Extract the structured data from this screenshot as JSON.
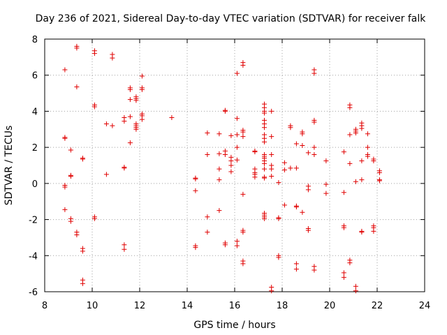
{
  "chart_data": {
    "type": "scatter",
    "title": "Day 236 of 2021, Sidereal Day-to-day VTEC variation (SDTVAR) for receiver falk",
    "xlabel": "GPS time / hours",
    "ylabel": "SDTVAR / TECUs",
    "xlim": [
      8,
      24
    ],
    "ylim": [
      -6,
      8
    ],
    "xticks": [
      8,
      10,
      12,
      14,
      16,
      18,
      20,
      22,
      24
    ],
    "yticks": [
      -6,
      -4,
      -2,
      0,
      2,
      4,
      6,
      8
    ],
    "xtick_labels": [
      "8",
      "10",
      "12",
      "14",
      "16",
      "18",
      "20",
      "22",
      "24"
    ],
    "ytick_labels": [
      "-6",
      "-4",
      "-2",
      "0",
      "2",
      "4",
      "6",
      "8"
    ],
    "grid": true,
    "marker": "plus",
    "color": "#e00000",
    "series": [
      {
        "name": "SDTVAR",
        "points": [
          [
            8.85,
            6.3
          ],
          [
            8.85,
            2.55
          ],
          [
            8.85,
            2.5
          ],
          [
            8.85,
            -0.1
          ],
          [
            8.85,
            -0.2
          ],
          [
            8.85,
            -1.45
          ],
          [
            9.1,
            1.85
          ],
          [
            9.1,
            0.45
          ],
          [
            9.1,
            0.4
          ],
          [
            9.1,
            -1.95
          ],
          [
            9.1,
            -2.1
          ],
          [
            9.35,
            7.6
          ],
          [
            9.35,
            7.5
          ],
          [
            9.35,
            5.35
          ],
          [
            9.35,
            -2.7
          ],
          [
            9.35,
            -2.85
          ],
          [
            9.6,
            1.4
          ],
          [
            9.6,
            1.35
          ],
          [
            9.6,
            -3.6
          ],
          [
            9.6,
            -3.75
          ],
          [
            9.6,
            -5.35
          ],
          [
            9.6,
            -5.55
          ],
          [
            10.1,
            7.35
          ],
          [
            10.1,
            7.2
          ],
          [
            10.1,
            4.35
          ],
          [
            10.1,
            4.25
          ],
          [
            10.1,
            -1.85
          ],
          [
            10.1,
            -1.95
          ],
          [
            10.6,
            3.3
          ],
          [
            10.6,
            0.5
          ],
          [
            10.85,
            7.15
          ],
          [
            10.85,
            6.95
          ],
          [
            10.85,
            3.2
          ],
          [
            11.35,
            3.65
          ],
          [
            11.35,
            3.45
          ],
          [
            11.35,
            0.9
          ],
          [
            11.35,
            0.85
          ],
          [
            11.35,
            -3.4
          ],
          [
            11.35,
            -3.65
          ],
          [
            11.6,
            5.3
          ],
          [
            11.6,
            5.2
          ],
          [
            11.6,
            4.65
          ],
          [
            11.6,
            3.7
          ],
          [
            11.6,
            2.25
          ],
          [
            11.85,
            4.8
          ],
          [
            11.85,
            4.7
          ],
          [
            11.85,
            4.6
          ],
          [
            11.85,
            3.3
          ],
          [
            11.85,
            3.2
          ],
          [
            11.85,
            3.1
          ],
          [
            11.85,
            3.0
          ],
          [
            12.1,
            5.95
          ],
          [
            12.1,
            5.3
          ],
          [
            12.1,
            5.2
          ],
          [
            12.1,
            3.85
          ],
          [
            12.1,
            3.75
          ],
          [
            12.1,
            3.55
          ],
          [
            13.35,
            3.65
          ],
          [
            14.35,
            0.3
          ],
          [
            14.35,
            0.25
          ],
          [
            14.35,
            -0.4
          ],
          [
            14.35,
            -3.45
          ],
          [
            14.35,
            -3.55
          ],
          [
            14.85,
            2.8
          ],
          [
            14.85,
            1.6
          ],
          [
            14.85,
            -1.85
          ],
          [
            14.85,
            -2.7
          ],
          [
            15.35,
            2.75
          ],
          [
            15.35,
            1.65
          ],
          [
            15.35,
            0.8
          ],
          [
            15.35,
            0.2
          ],
          [
            15.35,
            -1.5
          ],
          [
            15.6,
            4.05
          ],
          [
            15.6,
            4.0
          ],
          [
            15.6,
            1.8
          ],
          [
            15.6,
            1.6
          ],
          [
            15.6,
            -3.3
          ],
          [
            15.6,
            -3.4
          ],
          [
            15.85,
            2.65
          ],
          [
            15.85,
            1.45
          ],
          [
            15.85,
            1.25
          ],
          [
            15.85,
            1.0
          ],
          [
            15.85,
            0.65
          ],
          [
            16.1,
            6.1
          ],
          [
            16.1,
            3.6
          ],
          [
            16.1,
            2.7
          ],
          [
            16.1,
            2.0
          ],
          [
            16.1,
            1.3
          ],
          [
            16.1,
            -3.2
          ],
          [
            16.1,
            -3.45
          ],
          [
            16.35,
            6.7
          ],
          [
            16.35,
            6.55
          ],
          [
            16.35,
            2.95
          ],
          [
            16.35,
            2.85
          ],
          [
            16.35,
            2.6
          ],
          [
            16.35,
            -0.6
          ],
          [
            16.35,
            -2.6
          ],
          [
            16.35,
            -2.7
          ],
          [
            16.35,
            -4.3
          ],
          [
            16.35,
            -4.45
          ],
          [
            16.85,
            1.8
          ],
          [
            16.85,
            1.75
          ],
          [
            16.85,
            0.8
          ],
          [
            16.85,
            0.6
          ],
          [
            16.85,
            0.5
          ],
          [
            16.85,
            0.35
          ],
          [
            17.25,
            4.4
          ],
          [
            17.25,
            4.2
          ],
          [
            17.25,
            4.0
          ],
          [
            17.25,
            3.9
          ],
          [
            17.25,
            3.5
          ],
          [
            17.25,
            3.3
          ],
          [
            17.25,
            3.1
          ],
          [
            17.25,
            2.7
          ],
          [
            17.25,
            2.5
          ],
          [
            17.25,
            2.3
          ],
          [
            17.25,
            1.6
          ],
          [
            17.25,
            1.5
          ],
          [
            17.25,
            1.4
          ],
          [
            17.25,
            1.25
          ],
          [
            17.25,
            1.1
          ],
          [
            17.25,
            0.8
          ],
          [
            17.25,
            0.35
          ],
          [
            17.25,
            0.3
          ],
          [
            17.25,
            -1.65
          ],
          [
            17.25,
            -1.75
          ],
          [
            17.25,
            -1.85
          ],
          [
            17.25,
            -1.95
          ],
          [
            17.55,
            4.0
          ],
          [
            17.55,
            2.6
          ],
          [
            17.55,
            1.6
          ],
          [
            17.55,
            1.0
          ],
          [
            17.55,
            0.8
          ],
          [
            17.55,
            0.4
          ],
          [
            17.55,
            -5.75
          ],
          [
            17.55,
            -5.95
          ],
          [
            17.85,
            0.05
          ],
          [
            17.85,
            -1.9
          ],
          [
            17.85,
            -1.95
          ],
          [
            17.85,
            -4.0
          ],
          [
            17.85,
            -4.1
          ],
          [
            18.1,
            1.15
          ],
          [
            18.1,
            0.75
          ],
          [
            18.1,
            -1.2
          ],
          [
            18.35,
            3.2
          ],
          [
            18.35,
            3.1
          ],
          [
            18.35,
            0.85
          ],
          [
            18.6,
            2.2
          ],
          [
            18.6,
            0.85
          ],
          [
            18.6,
            -1.25
          ],
          [
            18.6,
            -1.3
          ],
          [
            18.6,
            -4.45
          ],
          [
            18.6,
            -4.75
          ],
          [
            18.85,
            2.85
          ],
          [
            18.85,
            2.75
          ],
          [
            18.85,
            2.1
          ],
          [
            18.85,
            -1.6
          ],
          [
            19.1,
            1.7
          ],
          [
            19.1,
            -0.15
          ],
          [
            19.1,
            -0.35
          ],
          [
            19.1,
            -2.5
          ],
          [
            19.1,
            -2.6
          ],
          [
            19.35,
            6.3
          ],
          [
            19.35,
            6.1
          ],
          [
            19.35,
            3.5
          ],
          [
            19.35,
            3.4
          ],
          [
            19.35,
            2.0
          ],
          [
            19.35,
            1.6
          ],
          [
            19.35,
            -4.6
          ],
          [
            19.35,
            -4.8
          ],
          [
            19.85,
            1.25
          ],
          [
            19.85,
            -0.05
          ],
          [
            19.85,
            -0.55
          ],
          [
            20.6,
            1.75
          ],
          [
            20.6,
            -0.5
          ],
          [
            20.6,
            -2.35
          ],
          [
            20.6,
            -2.45
          ],
          [
            20.6,
            -4.95
          ],
          [
            20.6,
            -5.2
          ],
          [
            20.85,
            4.35
          ],
          [
            20.85,
            4.2
          ],
          [
            20.85,
            2.7
          ],
          [
            20.85,
            1.1
          ],
          [
            20.85,
            -4.25
          ],
          [
            20.85,
            -4.4
          ],
          [
            21.1,
            3.0
          ],
          [
            21.1,
            2.9
          ],
          [
            21.1,
            2.8
          ],
          [
            21.1,
            0.1
          ],
          [
            21.1,
            -5.7
          ],
          [
            21.1,
            -5.95
          ],
          [
            21.35,
            3.35
          ],
          [
            21.35,
            3.2
          ],
          [
            21.35,
            3.05
          ],
          [
            21.35,
            1.25
          ],
          [
            21.35,
            0.2
          ],
          [
            21.35,
            -2.65
          ],
          [
            21.35,
            -2.7
          ],
          [
            21.6,
            2.75
          ],
          [
            21.6,
            2.0
          ],
          [
            21.6,
            1.6
          ],
          [
            21.6,
            1.5
          ],
          [
            21.85,
            1.35
          ],
          [
            21.85,
            1.25
          ],
          [
            21.85,
            -2.35
          ],
          [
            21.85,
            -2.45
          ],
          [
            21.85,
            -2.65
          ],
          [
            22.1,
            0.7
          ],
          [
            22.1,
            0.6
          ],
          [
            22.1,
            0.2
          ],
          [
            22.1,
            0.15
          ]
        ]
      }
    ]
  }
}
